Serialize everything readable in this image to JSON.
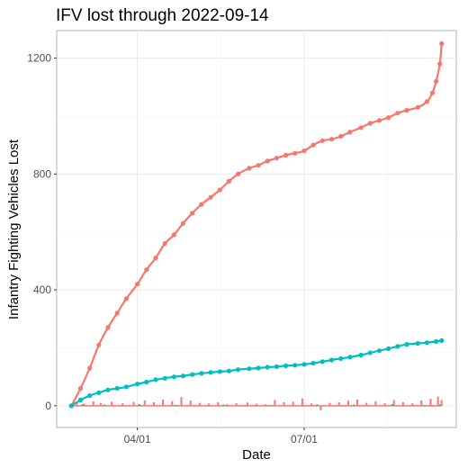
{
  "chart_data": {
    "type": "line",
    "title": "IFV lost through 2022-09-14",
    "xlabel": "Date",
    "ylabel": "Infantry Fighting Vehicles Lost",
    "x_range": [
      "2022-02-16",
      "2022-09-22"
    ],
    "ylim": [
      -75,
      1295
    ],
    "x_ticks": [
      {
        "date": "2022-04-01",
        "label": "04/01"
      },
      {
        "date": "2022-07-01",
        "label": "07/01"
      }
    ],
    "y_ticks": [
      0,
      400,
      800,
      1200
    ],
    "grid": true,
    "legend": "none",
    "series": [
      {
        "color": "#F8766D",
        "kind": "cumulative-points-with-smooth-trend",
        "points": [
          [
            "2022-02-24",
            0
          ],
          [
            "2022-03-01",
            60
          ],
          [
            "2022-03-06",
            130
          ],
          [
            "2022-03-11",
            210
          ],
          [
            "2022-03-16",
            270
          ],
          [
            "2022-03-21",
            320
          ],
          [
            "2022-03-26",
            370
          ],
          [
            "2022-04-01",
            420
          ],
          [
            "2022-04-06",
            470
          ],
          [
            "2022-04-11",
            510
          ],
          [
            "2022-04-16",
            560
          ],
          [
            "2022-04-21",
            590
          ],
          [
            "2022-04-26",
            630
          ],
          [
            "2022-05-01",
            665
          ],
          [
            "2022-05-06",
            695
          ],
          [
            "2022-05-11",
            720
          ],
          [
            "2022-05-16",
            745
          ],
          [
            "2022-05-21",
            775
          ],
          [
            "2022-05-26",
            800
          ],
          [
            "2022-06-01",
            820
          ],
          [
            "2022-06-06",
            830
          ],
          [
            "2022-06-11",
            845
          ],
          [
            "2022-06-16",
            855
          ],
          [
            "2022-06-21",
            865
          ],
          [
            "2022-06-26",
            872
          ],
          [
            "2022-07-01",
            880
          ],
          [
            "2022-07-06",
            900
          ],
          [
            "2022-07-11",
            915
          ],
          [
            "2022-07-16",
            920
          ],
          [
            "2022-07-21",
            930
          ],
          [
            "2022-07-26",
            945
          ],
          [
            "2022-08-01",
            960
          ],
          [
            "2022-08-06",
            975
          ],
          [
            "2022-08-11",
            985
          ],
          [
            "2022-08-16",
            995
          ],
          [
            "2022-08-21",
            1010
          ],
          [
            "2022-08-26",
            1020
          ],
          [
            "2022-09-01",
            1030
          ],
          [
            "2022-09-06",
            1050
          ],
          [
            "2022-09-09",
            1080
          ],
          [
            "2022-09-11",
            1120
          ],
          [
            "2022-09-13",
            1180
          ],
          [
            "2022-09-14",
            1250
          ]
        ]
      },
      {
        "color": "#00BFC4",
        "kind": "cumulative-points-with-smooth-trend",
        "points": [
          [
            "2022-02-24",
            0
          ],
          [
            "2022-03-01",
            20
          ],
          [
            "2022-03-06",
            35
          ],
          [
            "2022-03-11",
            45
          ],
          [
            "2022-03-16",
            55
          ],
          [
            "2022-03-21",
            60
          ],
          [
            "2022-03-26",
            65
          ],
          [
            "2022-04-01",
            75
          ],
          [
            "2022-04-06",
            82
          ],
          [
            "2022-04-11",
            90
          ],
          [
            "2022-04-16",
            95
          ],
          [
            "2022-04-21",
            100
          ],
          [
            "2022-04-26",
            103
          ],
          [
            "2022-05-01",
            108
          ],
          [
            "2022-05-06",
            112
          ],
          [
            "2022-05-11",
            115
          ],
          [
            "2022-05-16",
            118
          ],
          [
            "2022-05-21",
            120
          ],
          [
            "2022-05-26",
            125
          ],
          [
            "2022-06-01",
            128
          ],
          [
            "2022-06-06",
            130
          ],
          [
            "2022-06-11",
            133
          ],
          [
            "2022-06-16",
            135
          ],
          [
            "2022-06-21",
            138
          ],
          [
            "2022-06-26",
            140
          ],
          [
            "2022-07-01",
            143
          ],
          [
            "2022-07-06",
            147
          ],
          [
            "2022-07-11",
            152
          ],
          [
            "2022-07-16",
            158
          ],
          [
            "2022-07-21",
            163
          ],
          [
            "2022-07-26",
            168
          ],
          [
            "2022-08-01",
            175
          ],
          [
            "2022-08-06",
            183
          ],
          [
            "2022-08-11",
            190
          ],
          [
            "2022-08-16",
            197
          ],
          [
            "2022-08-21",
            205
          ],
          [
            "2022-08-26",
            212
          ],
          [
            "2022-09-01",
            215
          ],
          [
            "2022-09-06",
            218
          ],
          [
            "2022-09-11",
            222
          ],
          [
            "2022-09-14",
            225
          ]
        ]
      }
    ],
    "daily_bars": [
      {
        "color": "#F8766D",
        "bars": [
          [
            "2022-02-27",
            12
          ],
          [
            "2022-03-03",
            8
          ],
          [
            "2022-03-08",
            15
          ],
          [
            "2022-03-12",
            10
          ],
          [
            "2022-03-18",
            14
          ],
          [
            "2022-03-24",
            9
          ],
          [
            "2022-03-30",
            13
          ],
          [
            "2022-04-05",
            18
          ],
          [
            "2022-04-10",
            12
          ],
          [
            "2022-04-15",
            22
          ],
          [
            "2022-04-20",
            16
          ],
          [
            "2022-04-25",
            30
          ],
          [
            "2022-04-30",
            18
          ],
          [
            "2022-05-05",
            10
          ],
          [
            "2022-05-10",
            8
          ],
          [
            "2022-05-15",
            12
          ],
          [
            "2022-05-20",
            6
          ],
          [
            "2022-05-25",
            9
          ],
          [
            "2022-05-31",
            11
          ],
          [
            "2022-06-05",
            7
          ],
          [
            "2022-06-10",
            5
          ],
          [
            "2022-06-15",
            20
          ],
          [
            "2022-06-20",
            12
          ],
          [
            "2022-06-25",
            14
          ],
          [
            "2022-06-30",
            25
          ],
          [
            "2022-07-05",
            8
          ],
          [
            "2022-07-10",
            -15
          ],
          [
            "2022-07-15",
            10
          ],
          [
            "2022-07-20",
            12
          ],
          [
            "2022-07-25",
            18
          ],
          [
            "2022-07-30",
            22
          ],
          [
            "2022-08-04",
            10
          ],
          [
            "2022-08-09",
            15
          ],
          [
            "2022-08-14",
            9
          ],
          [
            "2022-08-19",
            20
          ],
          [
            "2022-08-24",
            12
          ],
          [
            "2022-08-29",
            8
          ],
          [
            "2022-09-03",
            18
          ],
          [
            "2022-09-08",
            24
          ],
          [
            "2022-09-12",
            32
          ],
          [
            "2022-09-14",
            20
          ]
        ]
      },
      {
        "color": "#00BFC4",
        "bars": [
          [
            "2022-03-02",
            5
          ],
          [
            "2022-03-14",
            4
          ],
          [
            "2022-04-02",
            6
          ],
          [
            "2022-04-22",
            3
          ],
          [
            "2022-05-18",
            4
          ],
          [
            "2022-06-12",
            3
          ],
          [
            "2022-07-08",
            5
          ],
          [
            "2022-07-28",
            4
          ],
          [
            "2022-08-18",
            6
          ],
          [
            "2022-09-05",
            3
          ],
          [
            "2022-09-13",
            5
          ]
        ]
      }
    ]
  }
}
